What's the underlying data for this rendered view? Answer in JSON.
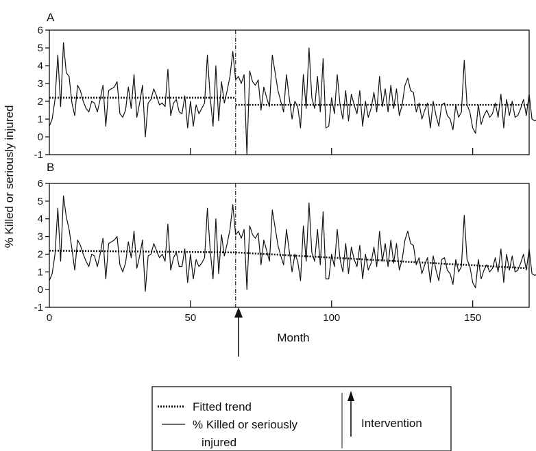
{
  "chart_data": [
    {
      "panel": "A",
      "type": "line",
      "ylabel": "% Killed or seriously injured",
      "ylim": [
        -1,
        6
      ],
      "xlim": [
        0,
        170
      ],
      "yticks": [
        -1,
        0,
        1,
        2,
        3,
        4,
        5,
        6
      ],
      "xticks": [
        50,
        100,
        150
      ],
      "intervention_month": 66,
      "series": [
        {
          "name": "% Killed or seriously injured",
          "values": [
            0.6,
            1.0,
            2.1,
            4.6,
            1.7,
            5.3,
            3.6,
            3.4,
            1.9,
            1.2,
            2.9,
            2.6,
            2.0,
            1.6,
            1.4,
            2.0,
            1.9,
            1.4,
            2.1,
            2.9,
            0.6,
            2.6,
            2.7,
            2.8,
            3.1,
            1.3,
            1.1,
            1.5,
            2.8,
            1.6,
            3.5,
            1.1,
            1.9,
            2.9,
            0.0,
            1.9,
            2.1,
            2.7,
            2.3,
            1.8,
            1.9,
            1.7,
            3.8,
            1.2,
            1.9,
            2.1,
            1.4,
            1.3,
            2.3,
            0.5,
            2.0,
            0.6,
            1.8,
            1.3,
            1.6,
            1.9,
            4.6,
            2.2,
            0.6,
            4.0,
            0.9,
            3.1,
            1.9,
            2.6,
            3.4,
            4.8,
            3.2,
            3.4,
            3.0,
            3.5,
            -1.0,
            3.7,
            3.1,
            2.9,
            3.2,
            1.5,
            2.8,
            2.2,
            1.7,
            4.6,
            3.6,
            2.6,
            2.0,
            1.4,
            3.5,
            2.2,
            1.0,
            2.0,
            1.7,
            0.5,
            3.5,
            1.6,
            5.0,
            2.2,
            1.6,
            3.4,
            1.4,
            4.4,
            0.5,
            0.6,
            2.2,
            1.3,
            3.5,
            1.8,
            1.0,
            2.6,
            0.9,
            2.4,
            1.8,
            1.3,
            2.6,
            0.6,
            2.0,
            1.1,
            1.6,
            2.5,
            1.4,
            3.4,
            1.7,
            2.7,
            1.4,
            2.9,
            1.6,
            2.7,
            1.2,
            1.8,
            2.9,
            3.3,
            2.6,
            2.5,
            1.4,
            1.9,
            1.0,
            1.5,
            1.9,
            0.5,
            2.0,
            1.2,
            0.6,
            1.8,
            1.9,
            1.2,
            1.0,
            0.4,
            1.8,
            1.1,
            1.4,
            4.3,
            1.8,
            1.4,
            0.5,
            0.2,
            1.8,
            0.7,
            1.2,
            1.5,
            1.1,
            1.3,
            1.9,
            1.1,
            2.4,
            0.5,
            2.1,
            1.2,
            2.0,
            1.1,
            1.2,
            1.6,
            2.1,
            1.2,
            2.4,
            1.0,
            0.9,
            1.0,
            1.6,
            2.3,
            0.5,
            0.5
          ]
        },
        {
          "name": "Fitted trend",
          "style": "dotted",
          "segments": [
            {
              "x": [
                0,
                66
              ],
              "y": [
                2.2,
                2.2
              ]
            },
            {
              "x": [
                66,
                170
              ],
              "y": [
                1.8,
                1.8
              ]
            }
          ]
        }
      ]
    },
    {
      "panel": "B",
      "type": "line",
      "ylabel": "% Killed or seriously injured",
      "xlabel": "Month",
      "ylim": [
        -1,
        6
      ],
      "xlim": [
        0,
        170
      ],
      "yticks": [
        -1,
        0,
        1,
        2,
        3,
        4,
        5,
        6
      ],
      "xticks": [
        0,
        50,
        100,
        150
      ],
      "intervention_month": 66,
      "series": [
        {
          "name": "% Killed or seriously injured",
          "values": [
            0.5,
            0.9,
            2.0,
            4.6,
            1.6,
            5.3,
            4.1,
            3.4,
            2.3,
            1.1,
            2.8,
            2.5,
            2.0,
            1.6,
            1.3,
            2.0,
            1.9,
            1.3,
            2.0,
            2.9,
            0.6,
            2.6,
            2.7,
            2.8,
            3.0,
            1.4,
            1.0,
            1.5,
            2.7,
            1.8,
            3.3,
            1.2,
            1.9,
            2.8,
            -0.1,
            1.9,
            2.0,
            2.6,
            2.2,
            1.8,
            2.0,
            1.6,
            3.7,
            1.1,
            1.8,
            2.1,
            1.3,
            1.3,
            2.3,
            0.4,
            2.0,
            0.6,
            1.7,
            1.3,
            1.5,
            1.8,
            4.6,
            2.2,
            0.6,
            4.0,
            0.9,
            3.1,
            1.9,
            2.6,
            3.4,
            4.8,
            3.1,
            3.3,
            2.9,
            3.4,
            0.0,
            3.6,
            3.1,
            2.9,
            3.2,
            1.4,
            2.8,
            2.2,
            1.6,
            4.5,
            3.5,
            2.5,
            1.9,
            1.4,
            3.4,
            2.2,
            1.0,
            2.0,
            1.6,
            0.5,
            3.6,
            1.6,
            4.9,
            2.1,
            1.6,
            3.4,
            1.4,
            4.4,
            0.6,
            0.6,
            2.0,
            1.3,
            3.4,
            1.7,
            1.0,
            2.6,
            0.9,
            2.4,
            1.7,
            1.3,
            2.5,
            0.6,
            2.0,
            1.1,
            1.5,
            2.4,
            1.3,
            3.3,
            1.6,
            2.6,
            1.3,
            2.8,
            1.5,
            2.6,
            1.1,
            1.7,
            2.8,
            3.3,
            2.6,
            2.5,
            1.4,
            1.8,
            0.9,
            1.4,
            1.8,
            0.4,
            1.9,
            1.1,
            0.5,
            1.7,
            1.8,
            1.1,
            0.9,
            0.3,
            1.7,
            1.0,
            1.3,
            4.2,
            1.7,
            1.3,
            0.4,
            0.1,
            1.7,
            0.6,
            1.1,
            1.4,
            1.0,
            1.2,
            1.8,
            1.0,
            2.3,
            0.4,
            2.0,
            1.1,
            1.9,
            1.0,
            1.1,
            1.5,
            2.0,
            1.1,
            2.3,
            0.9,
            0.8,
            0.9,
            1.5,
            2.2,
            0.4,
            0.4
          ]
        },
        {
          "name": "Fitted trend",
          "style": "dotted",
          "segments": [
            {
              "x": [
                0,
                66
              ],
              "y": [
                2.2,
                2.1
              ]
            },
            {
              "x": [
                66,
                170
              ],
              "y": [
                2.1,
                1.2
              ]
            }
          ]
        }
      ]
    }
  ],
  "panels": {
    "a_label": "A",
    "b_label": "B"
  },
  "xaxis": {
    "title": "Month"
  },
  "yaxis": {
    "title": "% Killed or seriously injured"
  },
  "legend": {
    "fitted_trend": "Fitted trend",
    "series_line1": "% Killed or seriously",
    "series_line2": "injured",
    "intervention": "Intervention"
  }
}
